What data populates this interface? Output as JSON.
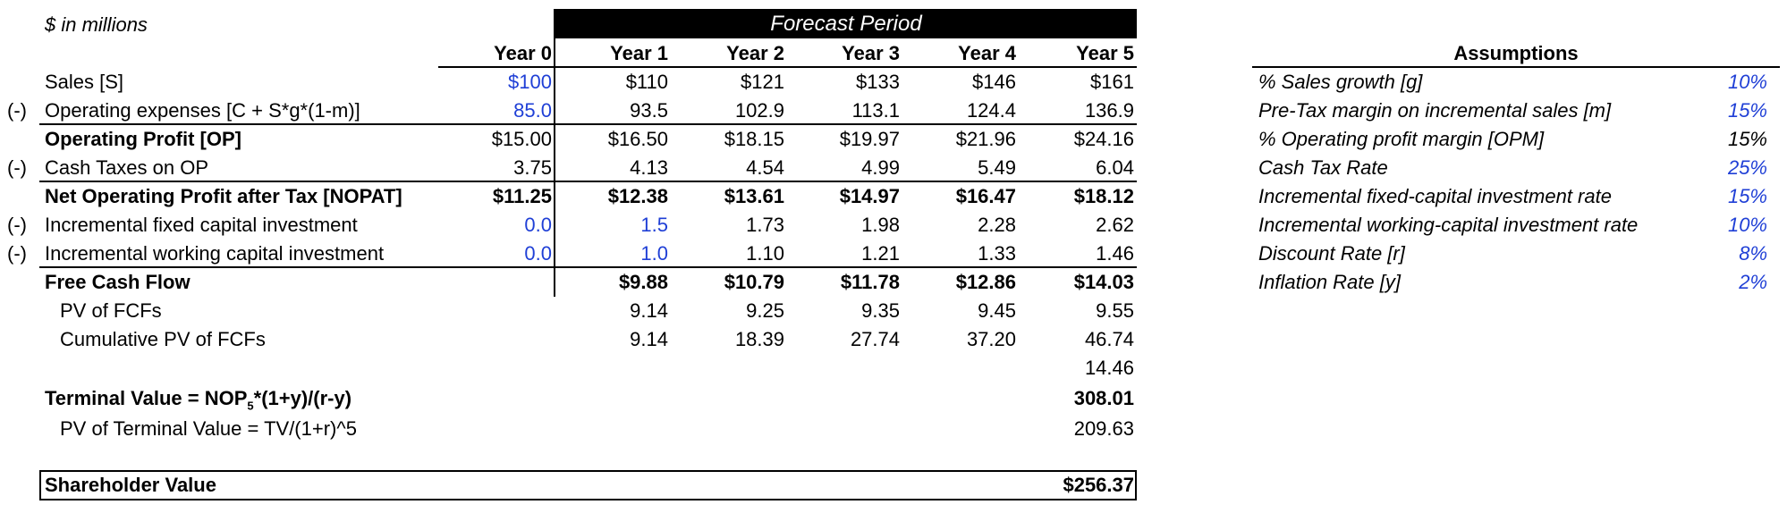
{
  "units_note": "$ in millions",
  "forecast_header": "Forecast Period",
  "year_headers": [
    "Year 0",
    "Year 1",
    "Year 2",
    "Year 3",
    "Year 4",
    "Year 5"
  ],
  "rows": [
    {
      "prefix": "",
      "label": "Sales [S]",
      "values": [
        "$100",
        "$110",
        "$121",
        "$133",
        "$146",
        "$161"
      ]
    },
    {
      "prefix": "(-)",
      "label": "Operating expenses [C + S*g*(1-m)]",
      "values": [
        "85.0",
        "93.5",
        "102.9",
        "113.1",
        "124.4",
        "136.9"
      ]
    },
    {
      "prefix": "",
      "label": "Operating Profit [OP]",
      "values": [
        "$15.00",
        "$16.50",
        "$18.15",
        "$19.97",
        "$21.96",
        "$24.16"
      ]
    },
    {
      "prefix": "(-)",
      "label": "Cash Taxes on OP",
      "values": [
        "3.75",
        "4.13",
        "4.54",
        "4.99",
        "5.49",
        "6.04"
      ]
    },
    {
      "prefix": "",
      "label": "Net Operating Profit after Tax [NOPAT]",
      "values": [
        "$11.25",
        "$12.38",
        "$13.61",
        "$14.97",
        "$16.47",
        "$18.12"
      ]
    },
    {
      "prefix": "(-)",
      "label": "Incremental fixed capital investment",
      "values": [
        "0.0",
        "1.5",
        "1.73",
        "1.98",
        "2.28",
        "2.62"
      ]
    },
    {
      "prefix": "(-)",
      "label": "Incremental working capital investment",
      "values": [
        "0.0",
        "1.0",
        "1.10",
        "1.21",
        "1.33",
        "1.46"
      ]
    },
    {
      "prefix": "",
      "label": "Free Cash Flow",
      "values": [
        "",
        "$9.88",
        "$10.79",
        "$11.78",
        "$12.86",
        "$14.03"
      ]
    },
    {
      "prefix": "",
      "label": "PV of FCFs",
      "values": [
        "",
        "9.14",
        "9.25",
        "9.35",
        "9.45",
        "9.55"
      ]
    },
    {
      "prefix": "",
      "label": "Cumulative PV of FCFs",
      "values": [
        "",
        "9.14",
        "18.39",
        "27.74",
        "37.20",
        "46.74"
      ]
    },
    {
      "prefix": "",
      "label": "",
      "values": [
        "",
        "",
        "",
        "",
        "",
        "14.46"
      ]
    }
  ],
  "terminal_value": {
    "label_main": "Terminal Value = NOP",
    "label_sub": "5",
    "label_rest": "*(1+y)/(r-y)",
    "value": "308.01"
  },
  "pv_terminal": {
    "label": "PV of Terminal Value = TV/(1+r)^5",
    "value": "209.63"
  },
  "shareholder_value": {
    "label": "Shareholder Value",
    "value": "$256.37"
  },
  "assumptions": {
    "title": "Assumptions",
    "items": [
      {
        "label": "% Sales growth [g]",
        "value": "10%"
      },
      {
        "label": "Pre-Tax margin on incremental sales [m]",
        "value": "15%"
      },
      {
        "label": "% Operating profit margin [OPM]",
        "value": "15%"
      },
      {
        "label": "Cash Tax Rate",
        "value": "25%"
      },
      {
        "label": "Incremental fixed-capital investment rate",
        "value": "15%"
      },
      {
        "label": "Incremental working-capital investment rate",
        "value": "10%"
      },
      {
        "label": "Discount Rate [r]",
        "value": "8%"
      },
      {
        "label": "Inflation Rate [y]",
        "value": "2%"
      }
    ]
  },
  "colors": {
    "input_blue": "#1f3fd6",
    "header_bg": "#000000"
  }
}
